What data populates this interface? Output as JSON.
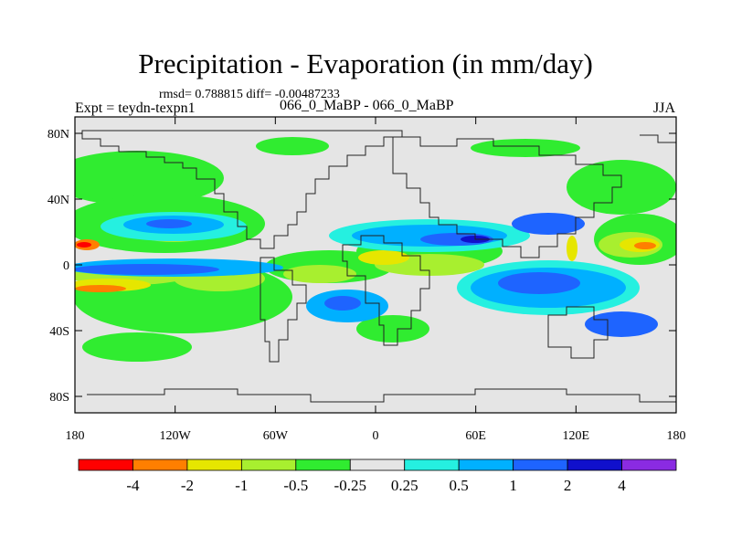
{
  "title": "Precipitation - Evaporation (in mm/day)",
  "stats": "rmsd= 0.788815 diff= -0.00487233",
  "expt": "Expt = teydn-texpn1",
  "experiment_names": "066_0_MaBP - 066_0_MaBP",
  "season": "JJA",
  "map": {
    "lon_ticks": [
      "180",
      "120W",
      "60W",
      "0",
      "60E",
      "120E",
      "180"
    ],
    "lat_ticks": [
      "80N",
      "40N",
      "0",
      "40S",
      "80S"
    ],
    "lon_range": [
      -180,
      180
    ],
    "lat_range": [
      -90,
      90
    ]
  },
  "colorbar": {
    "colors": [
      "#ff0000",
      "#ff7f00",
      "#e6e600",
      "#a8ef2f",
      "#30ec30",
      "#e5e5e5",
      "#25f0e0",
      "#00b0ff",
      "#1e64ff",
      "#1010cc",
      "#8a2be2"
    ],
    "labels": [
      "-4",
      "-2",
      "-1",
      "-0.5",
      "-0.25",
      "0.25",
      "0.5",
      "1",
      "2",
      "4"
    ]
  }
}
